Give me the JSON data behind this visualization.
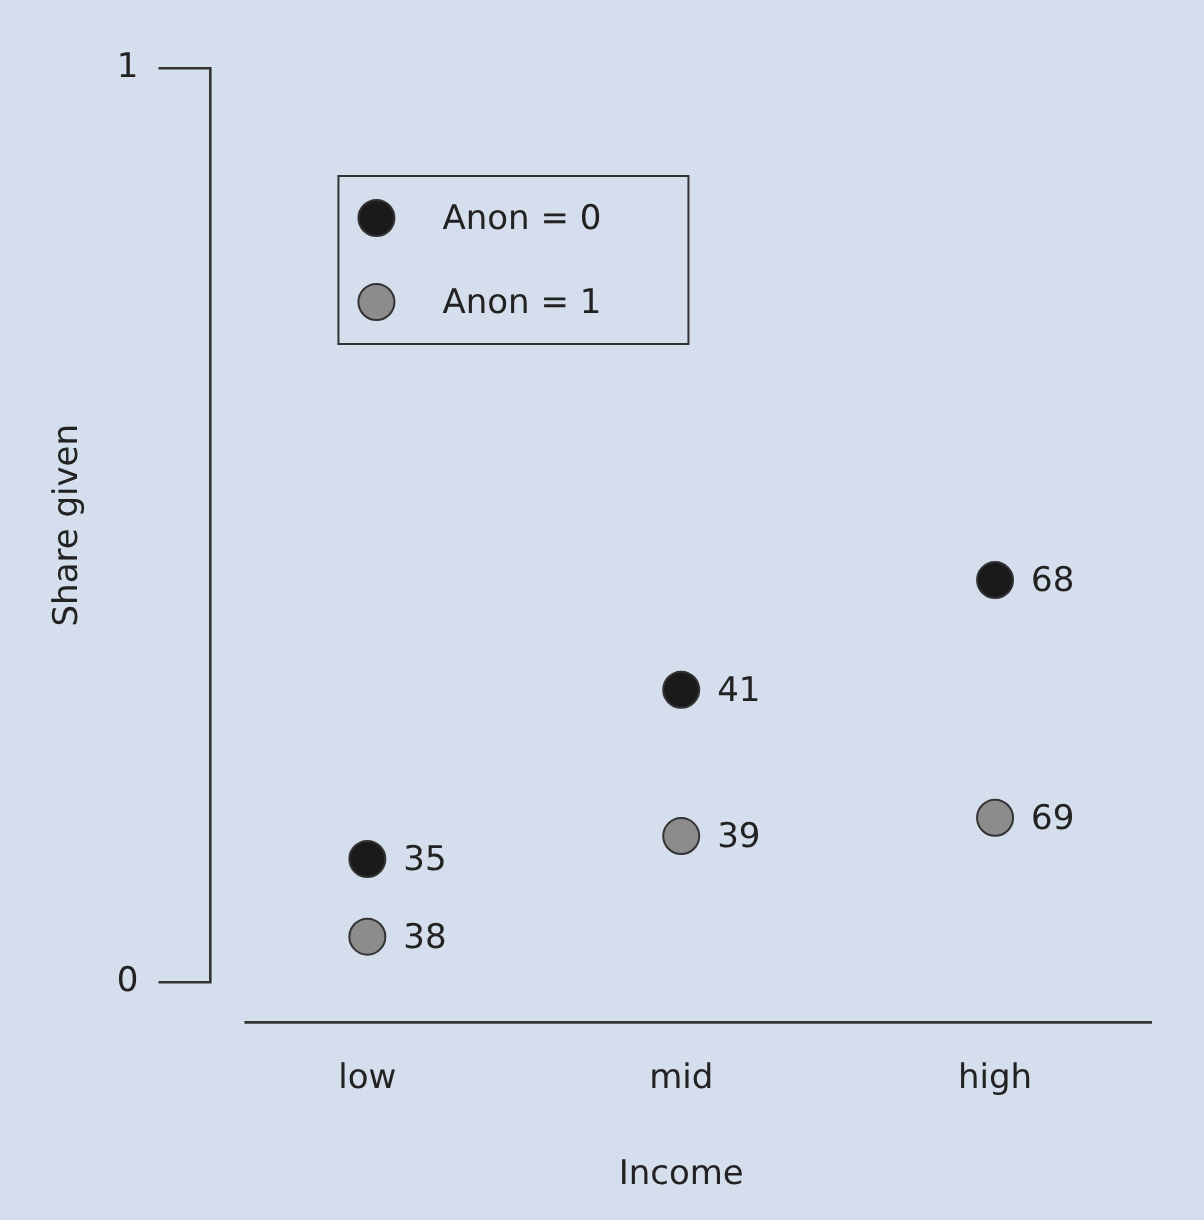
{
  "chart_data": {
    "type": "scatter",
    "xlabel": "Income",
    "ylabel": "Share given",
    "categories": [
      "low",
      "mid",
      "high"
    ],
    "series": [
      {
        "name": "Anon = 0",
        "color": "#1a1a1a",
        "values": [
          0.135,
          0.32,
          0.44
        ]
      },
      {
        "name": "Anon = 1",
        "color": "#8c8c8c",
        "values": [
          0.05,
          0.16,
          0.18
        ]
      }
    ],
    "annotations": [
      {
        "text": "35",
        "x": "low",
        "y": 0.135
      },
      {
        "text": "41",
        "x": "mid",
        "y": 0.32
      },
      {
        "text": "68",
        "x": "high",
        "y": 0.44
      },
      {
        "text": "38",
        "x": "low",
        "y": 0.05
      },
      {
        "text": "39",
        "x": "mid",
        "y": 0.16
      },
      {
        "text": "69",
        "x": "high",
        "y": 0.18
      }
    ],
    "ylim": [
      0,
      1
    ],
    "yticks": [
      0,
      1
    ],
    "legend": "top left",
    "marker": "circle"
  }
}
